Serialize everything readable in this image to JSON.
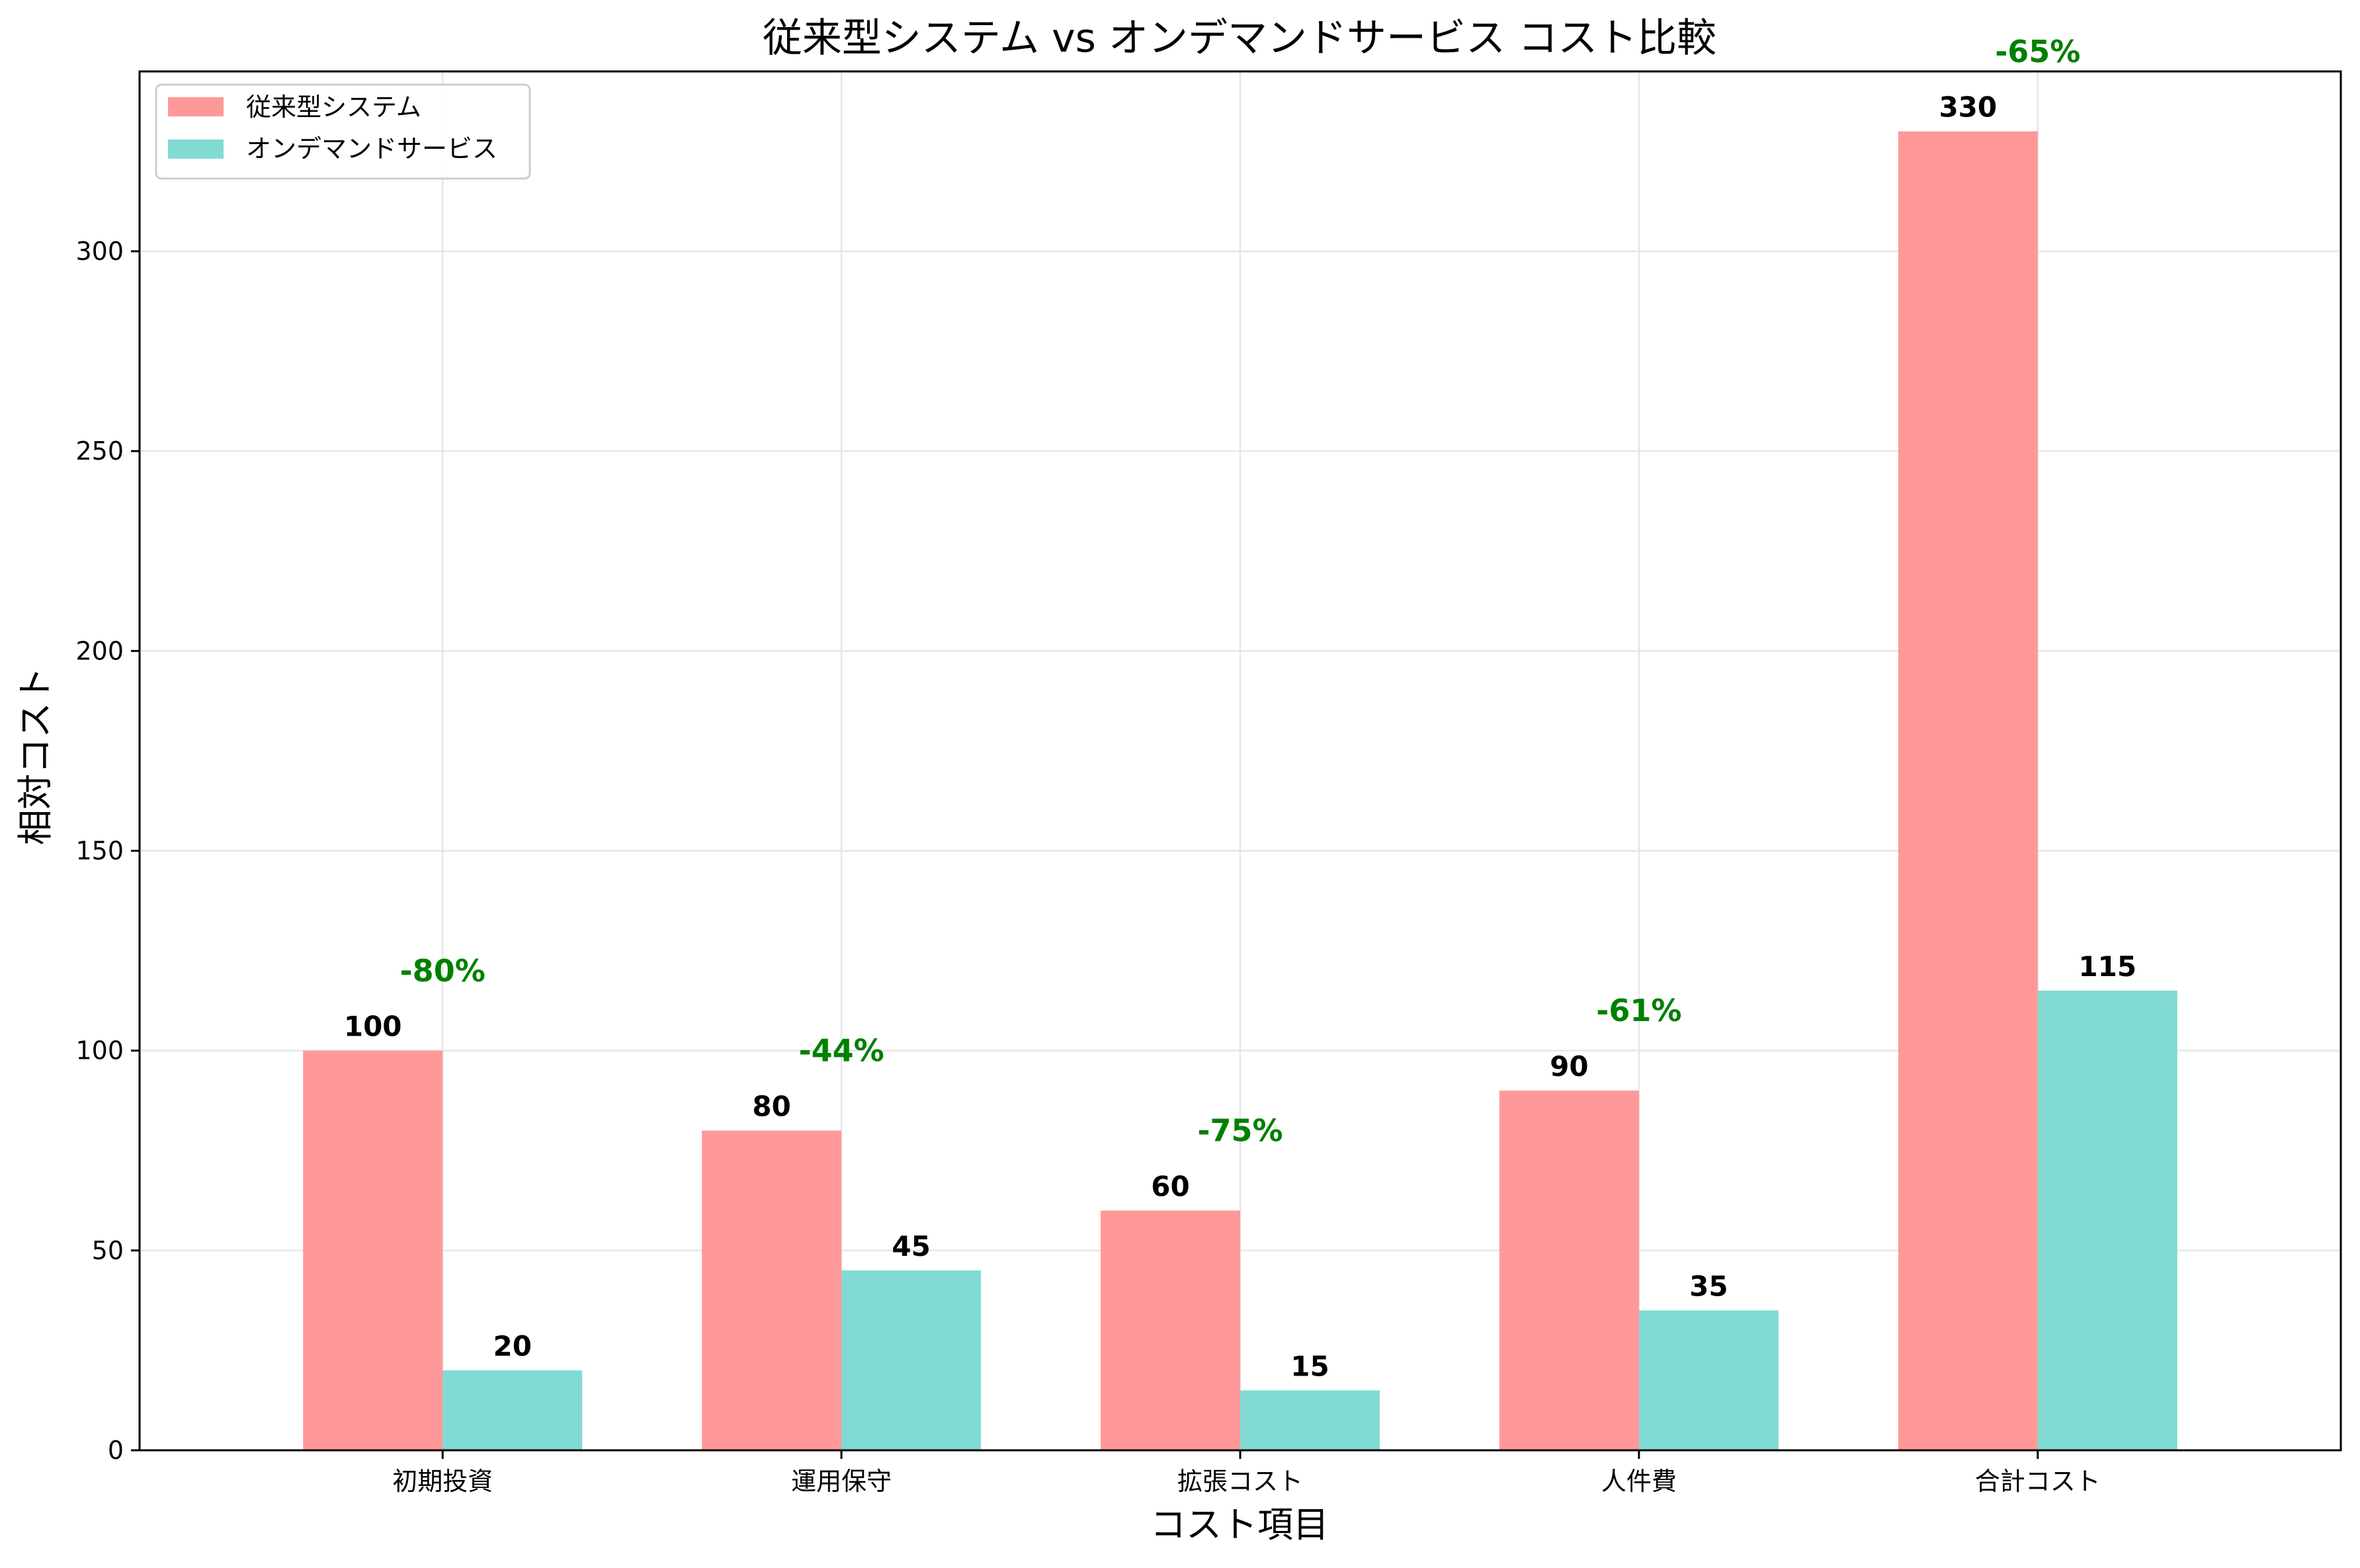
{
  "chart_data": {
    "type": "bar",
    "title": "従来型システム vs オンデマンドサービス コスト比較",
    "xlabel": "コスト項目",
    "ylabel": "相対コスト",
    "categories": [
      "初期投資",
      "運用保守",
      "拡張コスト",
      "人件費",
      "合計コスト"
    ],
    "series": [
      {
        "name": "従来型システム",
        "values": [
          100,
          80,
          60,
          90,
          330
        ],
        "color": "#ff9999"
      },
      {
        "name": "オンデマンドサービス",
        "values": [
          20,
          45,
          15,
          35,
          115
        ],
        "color": "#82dbd3"
      }
    ],
    "reduction_labels": [
      "-80%",
      "-44%",
      "-75%",
      "-61%",
      "-65%"
    ],
    "reduction_color": "#008000",
    "ylim": [
      0,
      345
    ],
    "yticks": [
      0,
      50,
      100,
      150,
      200,
      250,
      300
    ],
    "grid": true,
    "legend_position": "top-left"
  }
}
